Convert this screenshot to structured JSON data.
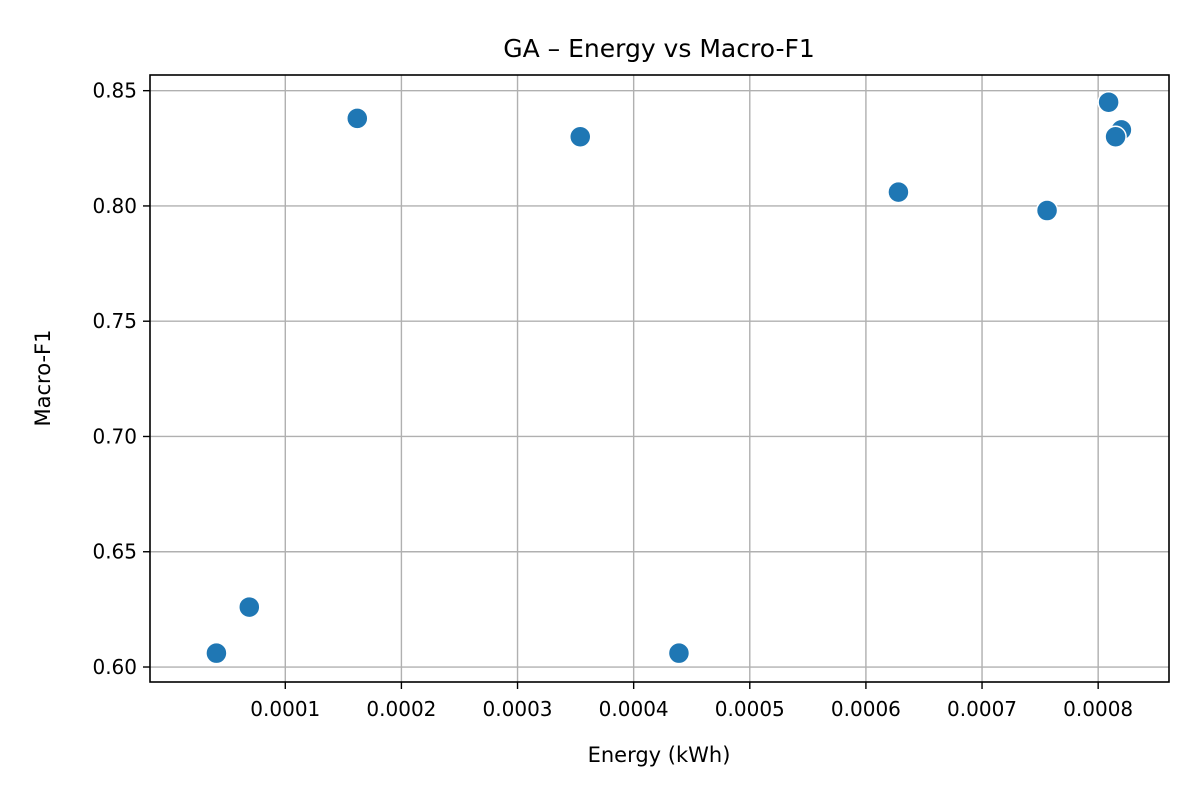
{
  "chart_data": {
    "type": "scatter",
    "title": "GA – Energy vs Macro-F1",
    "xlabel": "Energy (kWh)",
    "ylabel": "Macro-F1",
    "xlim": [
      -1.65e-05,
      0.000861
    ],
    "ylim": [
      0.5935,
      0.8568
    ],
    "x_ticks": [
      0.0001,
      0.0002,
      0.0003,
      0.0004,
      0.0005,
      0.0006,
      0.0007,
      0.0008
    ],
    "x_tick_labels": [
      "0.0001",
      "0.0002",
      "0.0003",
      "0.0004",
      "0.0005",
      "0.0006",
      "0.0007",
      "0.0008"
    ],
    "y_ticks": [
      0.6,
      0.65,
      0.7,
      0.75,
      0.8,
      0.85
    ],
    "y_tick_labels": [
      "0.60",
      "0.65",
      "0.70",
      "0.75",
      "0.80",
      "0.85"
    ],
    "grid": true,
    "marker_color": "#1f77b4",
    "points": [
      {
        "x": 4.07e-05,
        "y": 0.606
      },
      {
        "x": 6.9e-05,
        "y": 0.626
      },
      {
        "x": 0.000162,
        "y": 0.838
      },
      {
        "x": 0.000354,
        "y": 0.83
      },
      {
        "x": 0.000439,
        "y": 0.606
      },
      {
        "x": 0.000628,
        "y": 0.806
      },
      {
        "x": 0.000756,
        "y": 0.798
      },
      {
        "x": 0.000809,
        "y": 0.845
      },
      {
        "x": 0.00082,
        "y": 0.833
      },
      {
        "x": 0.000815,
        "y": 0.83
      }
    ]
  }
}
